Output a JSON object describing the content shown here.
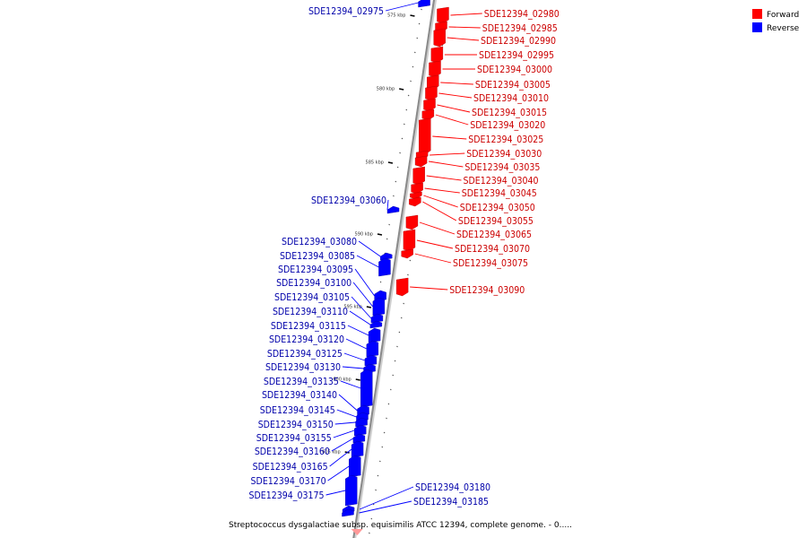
{
  "caption": "Streptococcus dysgalactiae subsp. equisimilis ATCC 12394, complete genome. - 0.....",
  "legend": [
    {
      "label": "Forward",
      "color": "#ff0000"
    },
    {
      "label": "Reverse",
      "color": "#0000ff"
    }
  ],
  "colors": {
    "forward": "#ff0000",
    "reverse": "#0000ff",
    "forward_label": "#cc0000",
    "reverse_label": "#0000aa",
    "backbone": "#8a8a8a"
  },
  "ticks": [
    "575 kbp",
    "580 kbp",
    "585 kbp",
    "590 kbp",
    "595 kbp",
    "600 kbp",
    "605 kbp"
  ],
  "forward_genes": [
    "SDE12394_02980",
    "SDE12394_02985",
    "SDE12394_02990",
    "SDE12394_02995",
    "SDE12394_03000",
    "SDE12394_03005",
    "SDE12394_03010",
    "SDE12394_03015",
    "SDE12394_03020",
    "SDE12394_03025",
    "SDE12394_03030",
    "SDE12394_03035",
    "SDE12394_03040",
    "SDE12394_03045",
    "SDE12394_03050",
    "SDE12394_03055",
    "SDE12394_03065",
    "SDE12394_03070",
    "SDE12394_03075",
    "SDE12394_03090"
  ],
  "reverse_genes": [
    "SDE12394_02975",
    "SDE12394_03060",
    "SDE12394_03080",
    "SDE12394_03085",
    "SDE12394_03095",
    "SDE12394_03100",
    "SDE12394_03105",
    "SDE12394_03110",
    "SDE12394_03115",
    "SDE12394_03120",
    "SDE12394_03125",
    "SDE12394_03130",
    "SDE12394_03135",
    "SDE12394_03140",
    "SDE12394_03145",
    "SDE12394_03150",
    "SDE12394_03155",
    "SDE12394_03160",
    "SDE12394_03165",
    "SDE12394_03170",
    "SDE12394_03175",
    "SDE12394_03180",
    "SDE12394_03185"
  ]
}
